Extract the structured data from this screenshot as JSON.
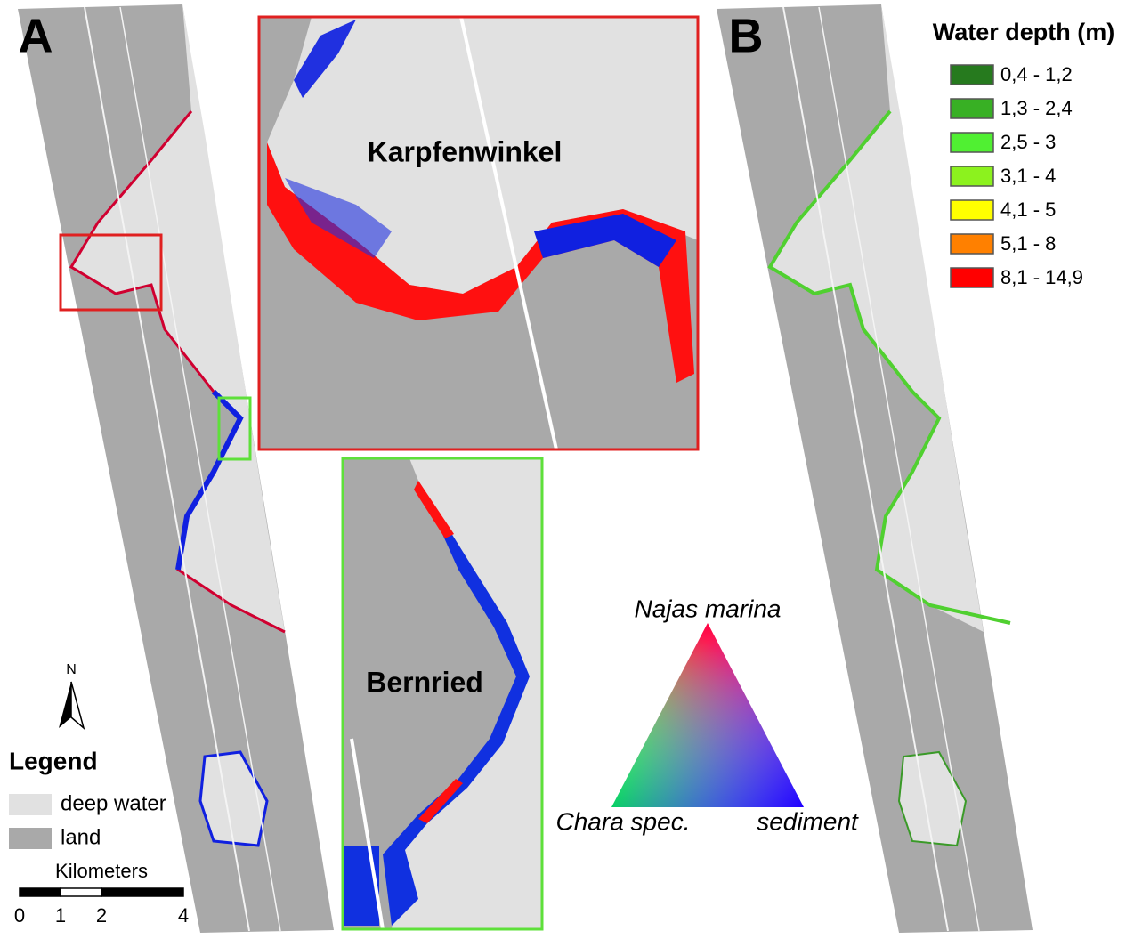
{
  "panel_labels": [
    "A",
    "B"
  ],
  "insets": {
    "karpfenwinkel": "Karpfenwinkel",
    "bernried": "Bernried"
  },
  "ternary": {
    "top": "Najas marina",
    "left": "Chara spec.",
    "right": "sediment"
  },
  "depth_legend": {
    "title": "Water depth (m)",
    "items": [
      {
        "label": "0,4 - 1,2",
        "color": "#267a1e"
      },
      {
        "label": "1,3 - 2,4",
        "color": "#38b024"
      },
      {
        "label": "2,5 - 3",
        "color": "#50f032"
      },
      {
        "label": "3,1 - 4",
        "color": "#8cf21e"
      },
      {
        "label": "4,1 - 5",
        "color": "#ffff00"
      },
      {
        "label": "5,1 - 8",
        "color": "#ff8000"
      },
      {
        "label": "8,1 - 14,9",
        "color": "#ff0000"
      }
    ]
  },
  "north": "N",
  "legend": {
    "title": "Legend",
    "items": [
      {
        "label": "deep water",
        "color": "#e1e1e1"
      },
      {
        "label": "land",
        "color": "#a9a9a9"
      }
    ]
  },
  "scale_bar": {
    "title": "Kilometers",
    "ticks": [
      0,
      1,
      2,
      4
    ]
  }
}
